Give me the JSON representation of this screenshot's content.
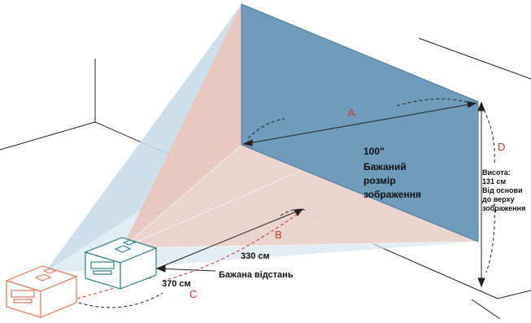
{
  "colors": {
    "screen": "#6f9cbb",
    "beam_outer": "#c8dbe8",
    "beam_inner": "#e8c7be",
    "projector_near": "#2f7f86",
    "projector_far": "#e07a5f",
    "label_red": "#c0392b"
  },
  "labels": {
    "a": "A",
    "b": "B",
    "c": "C",
    "d": "D"
  },
  "screen_text": {
    "size": "100\"",
    "line1": "Бажаний",
    "line2": "розмір",
    "line3": "зображення"
  },
  "distances": {
    "near": "330 см",
    "far": "370 см",
    "caption": "Бажана відстань"
  },
  "height_text": {
    "line1": "Висота:",
    "line2": "131 см",
    "line3": "Від основи",
    "line4": "до верху",
    "line5": "зображення"
  }
}
